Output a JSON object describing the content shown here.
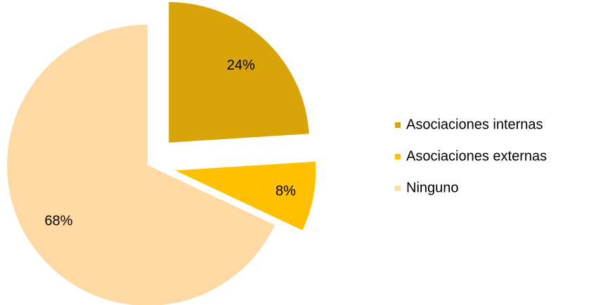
{
  "chart_data": {
    "type": "pie",
    "categories": [
      "Asociaciones internas",
      "Asociaciones externas",
      "Ninguno"
    ],
    "values": [
      24,
      8,
      68
    ],
    "value_labels": [
      "24%",
      "8%",
      "68%"
    ],
    "colors": [
      "#d9a40a",
      "#ffc000",
      "#fed9a3"
    ],
    "legend": "right"
  }
}
